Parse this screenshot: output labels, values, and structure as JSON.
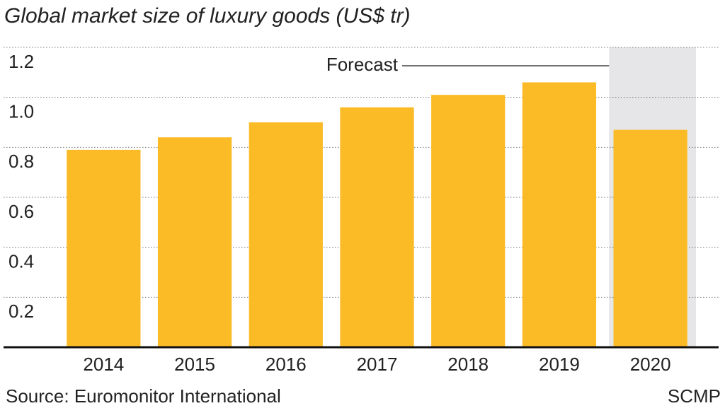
{
  "chart_data": {
    "type": "bar",
    "title": "Global market size of luxury goods (US$ tr)",
    "categories": [
      "2014",
      "2015",
      "2016",
      "2017",
      "2018",
      "2019",
      "2020"
    ],
    "values": [
      0.79,
      0.84,
      0.9,
      0.96,
      1.01,
      1.06,
      0.87
    ],
    "color": "#fbbb27",
    "ylim": [
      0,
      1.2
    ],
    "yticks": [
      0.2,
      0.4,
      0.6,
      {
        "value": 0.8,
        "label": "0.8"
      },
      {
        "value": 1,
        "label": "1.0"
      },
      1.2
    ],
    "grid": true,
    "forecast": {
      "label": "Forecast",
      "categories": [
        "2020"
      ],
      "color": "#e6e6e8"
    },
    "source": "Source: Euromonitor International",
    "credit": "SCMP"
  }
}
